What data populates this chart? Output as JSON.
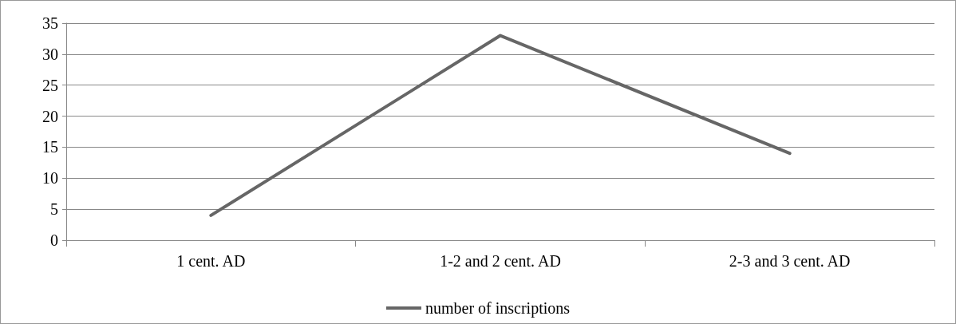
{
  "chart_data": {
    "type": "line",
    "categories": [
      "1 cent. AD",
      "1-2 and 2 cent. AD",
      "2-3 and 3 cent. AD"
    ],
    "series": [
      {
        "name": "number of inscriptions",
        "color": "#666666",
        "values": [
          4,
          33,
          14
        ]
      }
    ],
    "ylim": [
      0,
      35
    ],
    "yticks": [
      0,
      5,
      10,
      15,
      20,
      25,
      30,
      35
    ],
    "grid": "y",
    "legend": "bottom",
    "marker": "none",
    "line_style": "solid"
  }
}
